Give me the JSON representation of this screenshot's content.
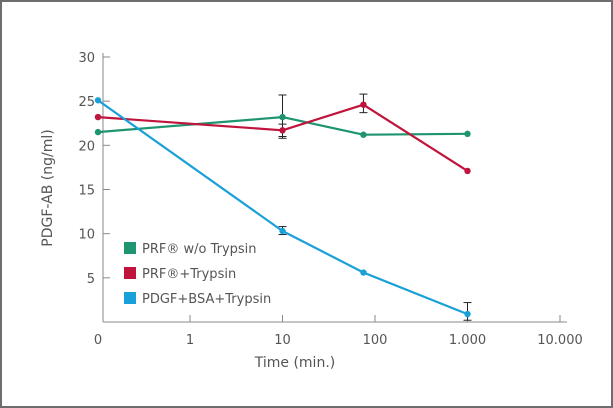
{
  "chart_data": {
    "type": "line",
    "title": "",
    "xlabel": "Time (min.)",
    "ylabel": "PDGF-AB (ng/ml)",
    "x_scale": "log",
    "x_ticks": [
      {
        "value": 0,
        "label": "0"
      },
      {
        "value": 1,
        "label": "1"
      },
      {
        "value": 10,
        "label": "10"
      },
      {
        "value": 100,
        "label": "100"
      },
      {
        "value": 1000,
        "label": "1.000"
      },
      {
        "value": 10000,
        "label": "10.000"
      }
    ],
    "y_ticks": [
      5,
      10,
      15,
      20,
      25,
      30
    ],
    "ylim": [
      0,
      30
    ],
    "grid": false,
    "legend_position": "bottom-left",
    "series": [
      {
        "name": "PRF® w/o Trypsin",
        "color": "#1e9470",
        "x": [
          0,
          10,
          75,
          1000
        ],
        "values": [
          21.5,
          23.2,
          21.2,
          21.3
        ],
        "error_upper": [
          null,
          25.7,
          null,
          null
        ],
        "error_lower": [
          null,
          20.8,
          null,
          null
        ]
      },
      {
        "name": "PRF®+Trypsin",
        "color": "#c0143c",
        "x": [
          0,
          10,
          75,
          1000
        ],
        "values": [
          23.2,
          21.7,
          24.6,
          17.1
        ],
        "error_upper": [
          null,
          22.4,
          25.8,
          null
        ],
        "error_lower": [
          null,
          21.0,
          23.7,
          null
        ]
      },
      {
        "name": "PDGF+BSA+Trypsin",
        "color": "#1aa0d8",
        "x": [
          0,
          10,
          75,
          1000
        ],
        "values": [
          25.1,
          10.3,
          5.6,
          0.9
        ],
        "error_upper": [
          null,
          10.8,
          null,
          2.2
        ],
        "error_lower": [
          null,
          9.9,
          null,
          0.2
        ]
      }
    ]
  }
}
